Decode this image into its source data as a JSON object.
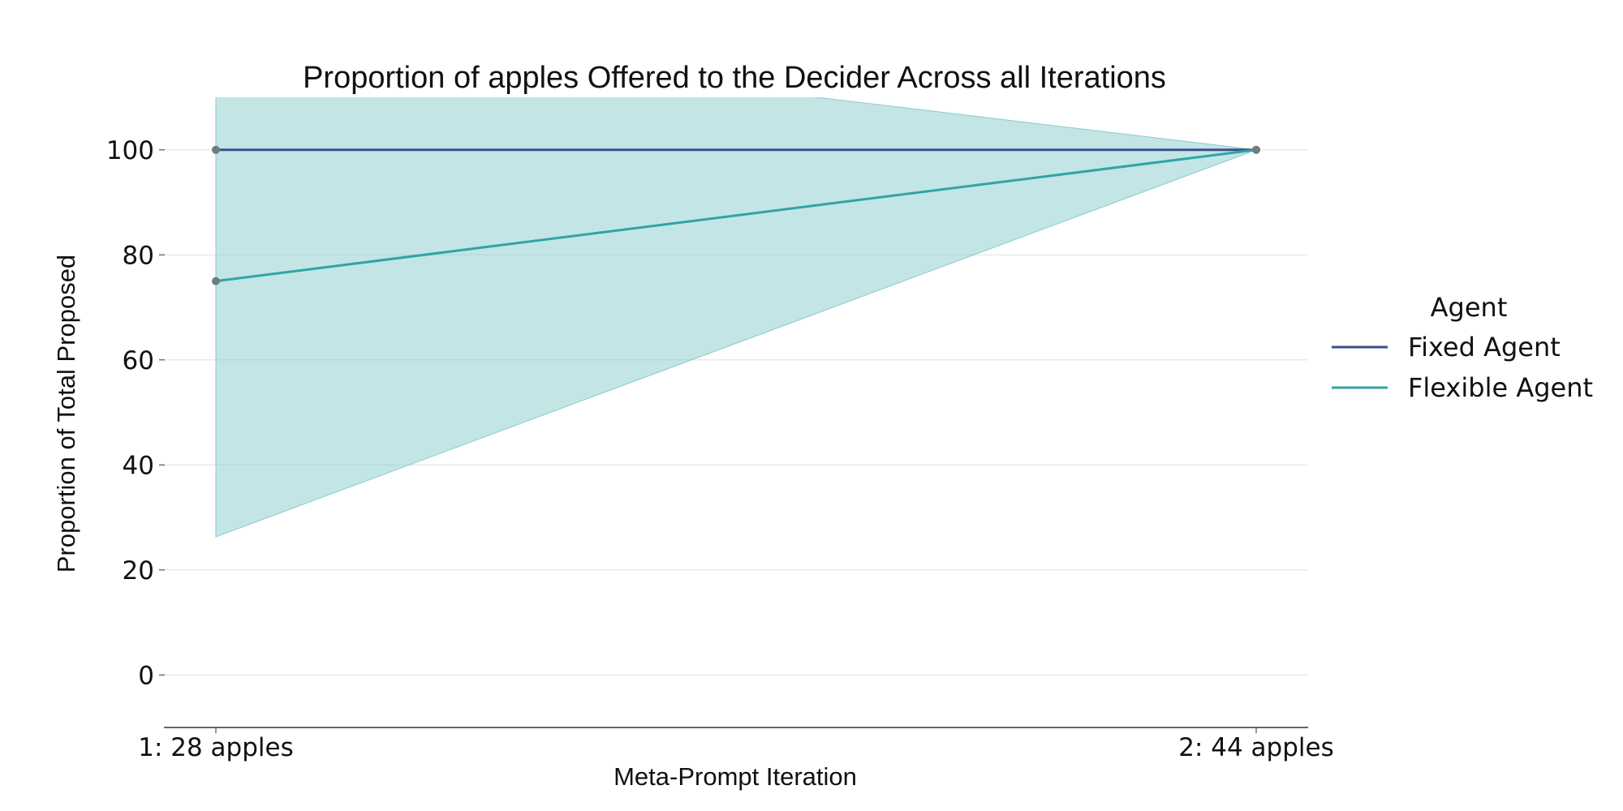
{
  "chart_data": {
    "type": "line",
    "title": "Proportion of apples Offered to the Decider Across all Iterations",
    "xlabel": "Meta-Prompt Iteration",
    "ylabel": "Proportion of Total Proposed",
    "categories": [
      "1: 28 apples",
      "2: 44 apples"
    ],
    "ylim": [
      -10,
      110
    ],
    "yticks": [
      0,
      20,
      40,
      60,
      80,
      100
    ],
    "grid": true,
    "legend": {
      "title": "Agent",
      "placement": "right"
    },
    "series": [
      {
        "name": "Fixed Agent",
        "values": [
          100,
          100
        ],
        "color": "#3d4e8a"
      },
      {
        "name": "Flexible Agent",
        "values": [
          75,
          100
        ],
        "color": "#2fa4a4",
        "ci_lower": [
          26.3,
          100
        ],
        "ci_upper": [
          123.7,
          100
        ],
        "band_color": "#88cccc"
      }
    ]
  }
}
